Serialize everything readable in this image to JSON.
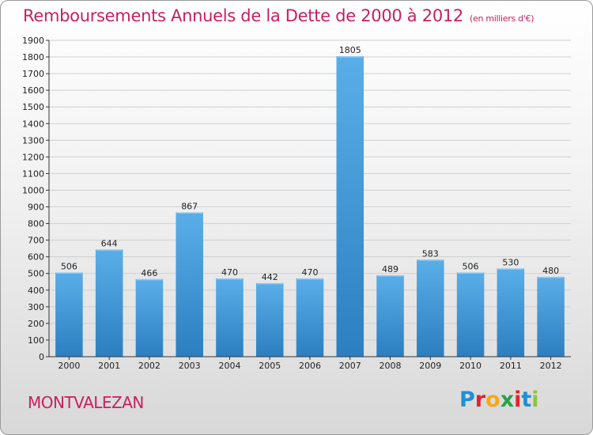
{
  "title": "Remboursements Annuels de la Dette de 2000 à 2012",
  "unit": "(en milliers d'€)",
  "commune": "MONTVALEZAN",
  "logo": {
    "text": "Proxiti",
    "letters": [
      "P",
      "r",
      "o",
      "x",
      "i",
      "t",
      "i"
    ],
    "colors": [
      "#1f8fd6",
      "#e2232a",
      "#f7a81b",
      "#2aa24a",
      "#e2232a",
      "#1f8fd6",
      "#8cc63f"
    ]
  },
  "colors": {
    "title": "#c8205f",
    "bar_light": "#5aaee8",
    "bar_dark": "#2b7fc0",
    "grid": "#cfcfcf"
  },
  "chart_data": {
    "type": "bar",
    "categories": [
      "2000",
      "2001",
      "2002",
      "2003",
      "2004",
      "2005",
      "2006",
      "2007",
      "2008",
      "2009",
      "2010",
      "2011",
      "2012"
    ],
    "values": [
      506,
      644,
      466,
      867,
      470,
      442,
      470,
      1805,
      489,
      583,
      506,
      530,
      480
    ],
    "title": "Remboursements Annuels de la Dette de 2000 à 2012",
    "xlabel": "",
    "ylabel": "",
    "ylim": [
      0,
      1900
    ],
    "yticks": [
      0,
      100,
      200,
      300,
      400,
      500,
      600,
      700,
      800,
      900,
      1000,
      1100,
      1200,
      1300,
      1400,
      1500,
      1600,
      1700,
      1800,
      1900
    ],
    "grid": true,
    "data_labels": true
  }
}
